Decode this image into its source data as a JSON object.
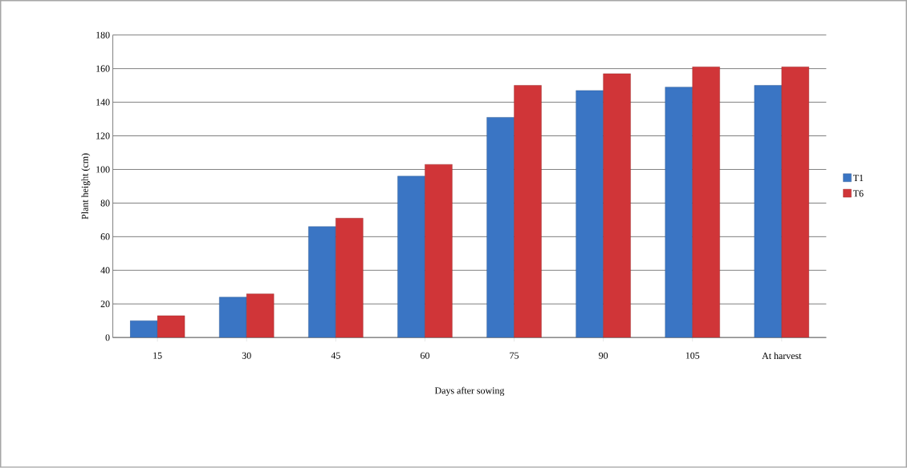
{
  "chart_data": {
    "type": "bar",
    "xlabel": "Days after sowing",
    "ylabel": "Plant height (cm)",
    "categories": [
      "15",
      "30",
      "45",
      "60",
      "75",
      "90",
      "105",
      "At harvest"
    ],
    "series": [
      {
        "name": "T1",
        "color": "#3a75c4",
        "values": [
          10,
          24,
          66,
          96,
          131,
          147,
          149,
          150
        ]
      },
      {
        "name": "T6",
        "color": "#d03538",
        "values": [
          13,
          26,
          71,
          103,
          150,
          157,
          161,
          161
        ]
      }
    ],
    "ylim": [
      0,
      180
    ],
    "yticks": [
      0,
      20,
      40,
      60,
      80,
      100,
      120,
      140,
      160,
      180
    ],
    "grid": "y",
    "legend": "right"
  }
}
